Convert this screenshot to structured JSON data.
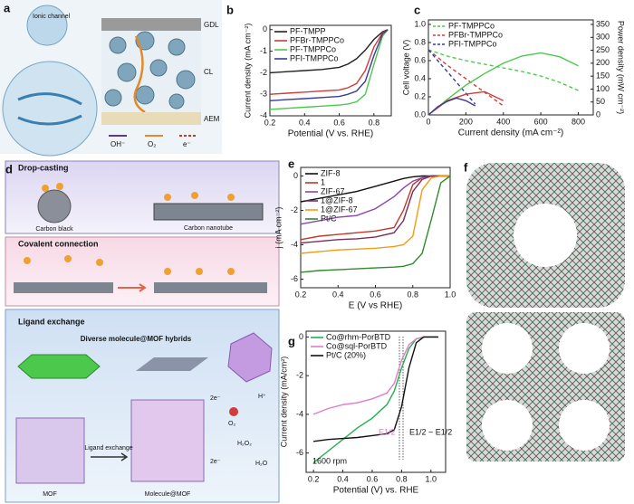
{
  "chart_data": [
    {
      "type": "line",
      "panel_label": "b",
      "xlabel": "Potential (V vs. RHE)",
      "ylabel": "Current density (mA cm⁻²)",
      "x": [
        0.2,
        0.3,
        0.4,
        0.5,
        0.6,
        0.65,
        0.7,
        0.75,
        0.8,
        0.85,
        0.88
      ],
      "xlim": [
        0.2,
        0.9
      ],
      "xticks": [
        0.2,
        0.4,
        0.6,
        0.8
      ],
      "ylim": [
        -4,
        0.2
      ],
      "yticks": [
        0,
        -1,
        -2,
        -3,
        -4
      ],
      "legend": "upper left",
      "series": [
        {
          "name": "PF-TMPP",
          "color": "#222222",
          "values": [
            -2.0,
            -1.95,
            -1.9,
            -1.85,
            -1.75,
            -1.6,
            -1.35,
            -0.95,
            -0.45,
            -0.1,
            0
          ]
        },
        {
          "name": "PFBr-TMPPCo",
          "color": "#d23b3b",
          "values": [
            -3.0,
            -2.95,
            -2.9,
            -2.85,
            -2.8,
            -2.7,
            -2.5,
            -1.9,
            -0.8,
            -0.15,
            0
          ]
        },
        {
          "name": "PF-TMPPCo",
          "color": "#4cc84c",
          "values": [
            -3.7,
            -3.65,
            -3.6,
            -3.55,
            -3.5,
            -3.45,
            -3.35,
            -3.0,
            -1.6,
            -0.3,
            0
          ]
        },
        {
          "name": "PFI-TMPPCo",
          "color": "#3a3a9a",
          "values": [
            -3.3,
            -3.25,
            -3.2,
            -3.15,
            -3.1,
            -3.0,
            -2.85,
            -2.4,
            -1.2,
            -0.2,
            0
          ]
        }
      ]
    },
    {
      "type": "line",
      "panel_label": "c",
      "xlabel": "Current density (mA cm⁻²)",
      "ylabel": "Cell voltage (V)",
      "y2label": "Power density (mW cm⁻²)",
      "xlim": [
        0,
        880
      ],
      "xticks": [
        0,
        200,
        400,
        600,
        800
      ],
      "ylim": [
        0,
        1.05
      ],
      "yticks": [
        {
          "value": 0,
          "label": "0.0"
        },
        0.2,
        0.4,
        0.6,
        0.8,
        {
          "value": 1,
          "label": "1.0"
        }
      ],
      "y2lim": [
        0,
        367.5
      ],
      "y2ticks": [
        0,
        50,
        100,
        150,
        200,
        250,
        300,
        350
      ],
      "legend": "upper left",
      "series": [
        {
          "name": "PF-TMPPCo",
          "color": "#4cc84c",
          "dash": true,
          "x": [
            0,
            100,
            200,
            300,
            400,
            500,
            600,
            700,
            800
          ],
          "values": [
            0.72,
            0.65,
            0.6,
            0.56,
            0.52,
            0.48,
            0.43,
            0.36,
            0.27
          ]
        },
        {
          "name": "PFBr-TMPPCo",
          "color": "#d23b3b",
          "dash": true,
          "x": [
            0,
            100,
            200,
            300,
            400
          ],
          "values": [
            0.72,
            0.55,
            0.4,
            0.25,
            0.1
          ]
        },
        {
          "name": "PFI-TMPPCo",
          "color": "#3a3a9a",
          "dash": true,
          "x": [
            0,
            50,
            100,
            150,
            200,
            250
          ],
          "values": [
            0.72,
            0.6,
            0.48,
            0.36,
            0.24,
            0.12
          ]
        },
        {
          "color": "#4cc84c",
          "axis": "y2",
          "x": [
            0,
            100,
            200,
            300,
            400,
            500,
            600,
            700,
            800
          ],
          "values": [
            0,
            60,
            115,
            160,
            200,
            228,
            240,
            225,
            190
          ]
        },
        {
          "color": "#d23b3b",
          "axis": "y2",
          "x": [
            0,
            100,
            200,
            300,
            400
          ],
          "values": [
            0,
            55,
            80,
            90,
            55
          ]
        },
        {
          "color": "#3a3a9a",
          "axis": "y2",
          "x": [
            0,
            50,
            100,
            150,
            200,
            250
          ],
          "values": [
            0,
            32,
            52,
            65,
            55,
            35
          ]
        }
      ]
    },
    {
      "type": "line",
      "panel_label": "e",
      "xlabel": "E (V vs RHE)",
      "ylabel": "j (mA cm⁻²)",
      "x": [
        0.2,
        0.3,
        0.4,
        0.5,
        0.6,
        0.7,
        0.75,
        0.8,
        0.85,
        0.9,
        0.95,
        1.0
      ],
      "xlim": [
        0.2,
        1.0
      ],
      "xticks": [
        0.2,
        0.4,
        0.6,
        0.8,
        {
          "value": 1,
          "label": "1.0"
        }
      ],
      "ylim": [
        -6.5,
        0.5
      ],
      "yticks": [
        0,
        -2,
        -4,
        -6
      ],
      "legend": "upper left",
      "series": [
        {
          "name": "ZIF-8",
          "color": "#111111",
          "values": [
            -1.5,
            -1.3,
            -1.1,
            -0.9,
            -0.6,
            -0.3,
            -0.15,
            -0.05,
            0,
            0,
            0,
            0
          ]
        },
        {
          "name": "1",
          "color": "#c0392b",
          "values": [
            -3.7,
            -3.5,
            -3.4,
            -3.3,
            -3.2,
            -3.0,
            -2.0,
            -0.5,
            -0.1,
            0,
            0,
            0
          ]
        },
        {
          "name": "ZIF-67",
          "color": "#8e44ad",
          "values": [
            -2.8,
            -2.6,
            -2.4,
            -2.3,
            -1.9,
            -1.2,
            -0.7,
            -0.3,
            -0.1,
            0,
            0,
            0
          ]
        },
        {
          "name": "1@ZIF-8",
          "color": "#7b2d5a",
          "values": [
            -3.9,
            -3.8,
            -3.7,
            -3.65,
            -3.55,
            -3.3,
            -2.6,
            -0.9,
            -0.2,
            0,
            0,
            0
          ]
        },
        {
          "name": "1@ZIF-67",
          "color": "#f39c12",
          "values": [
            -4.5,
            -4.4,
            -4.3,
            -4.25,
            -4.2,
            -4.1,
            -4.0,
            -3.5,
            -0.8,
            -0.1,
            0,
            0
          ]
        },
        {
          "name": "Pt/C",
          "color": "#2e8b2e",
          "values": [
            -5.6,
            -5.5,
            -5.45,
            -5.4,
            -5.35,
            -5.3,
            -5.25,
            -5.1,
            -4.5,
            -2.5,
            -0.4,
            0
          ]
        }
      ]
    },
    {
      "type": "line",
      "panel_label": "g",
      "xlabel": "Potential (V) vs. RHE",
      "ylabel": "Current density (mA/cm²)",
      "x": [
        0.2,
        0.3,
        0.4,
        0.5,
        0.6,
        0.7,
        0.75,
        0.8,
        0.85,
        0.9,
        0.95,
        1.0,
        1.05
      ],
      "xlim": [
        0.15,
        1.1
      ],
      "xticks": [
        0.2,
        0.4,
        0.6,
        0.8,
        {
          "value": 1,
          "label": "1.0"
        }
      ],
      "ylim": [
        -7,
        0.3
      ],
      "yticks": [
        0,
        -2,
        -4,
        -6
      ],
      "legend": "upper left",
      "annotations": [
        "1600 rpm",
        "E1/2",
        "E1/2 ~ E1/2"
      ],
      "series": [
        {
          "name": "Co@rhm-PorBTD",
          "color": "#22b14c",
          "values": [
            -6.5,
            -5.9,
            -5.3,
            -4.7,
            -4.2,
            -3.5,
            -2.8,
            -1.6,
            -0.6,
            -0.1,
            0,
            0,
            0
          ]
        },
        {
          "name": "Co@sql-PorBTD",
          "color": "#e07cc8",
          "values": [
            -4.0,
            -3.7,
            -3.5,
            -3.4,
            -3.2,
            -2.9,
            -2.4,
            -1.2,
            -0.4,
            -0.1,
            0,
            0,
            0
          ]
        },
        {
          "name": "Pt/C (20%)",
          "color": "#111111",
          "values": [
            -5.4,
            -5.3,
            -5.25,
            -5.2,
            -5.1,
            -5.0,
            -4.8,
            -3.6,
            -1.6,
            -0.3,
            0,
            0,
            0
          ]
        }
      ]
    }
  ],
  "panel_a": {
    "label": "a",
    "ionic_channel": "Ionic channel",
    "layers": [
      "GDL",
      "CL",
      "AEM"
    ],
    "legend": [
      "OH⁻",
      "O₂",
      "e⁻"
    ]
  },
  "panel_d": {
    "label": "d",
    "drop_casting": {
      "title": "Drop-casting",
      "items": [
        "Carbon black",
        "Carbon nanotube"
      ]
    },
    "covalent": {
      "title": "Covalent connection"
    },
    "ligand": {
      "title": "Ligand exchange",
      "subtitle": "Diverse molecule@MOF hybrids",
      "items": [
        "MOF",
        "Ligand exchange",
        "Molecule@MOF"
      ],
      "reaction_labels": [
        "2e⁻",
        "O₂",
        "H⁺",
        "2e⁻",
        "H₂O₂",
        "H₂O"
      ]
    }
  },
  "panel_f": {
    "label": "f"
  }
}
